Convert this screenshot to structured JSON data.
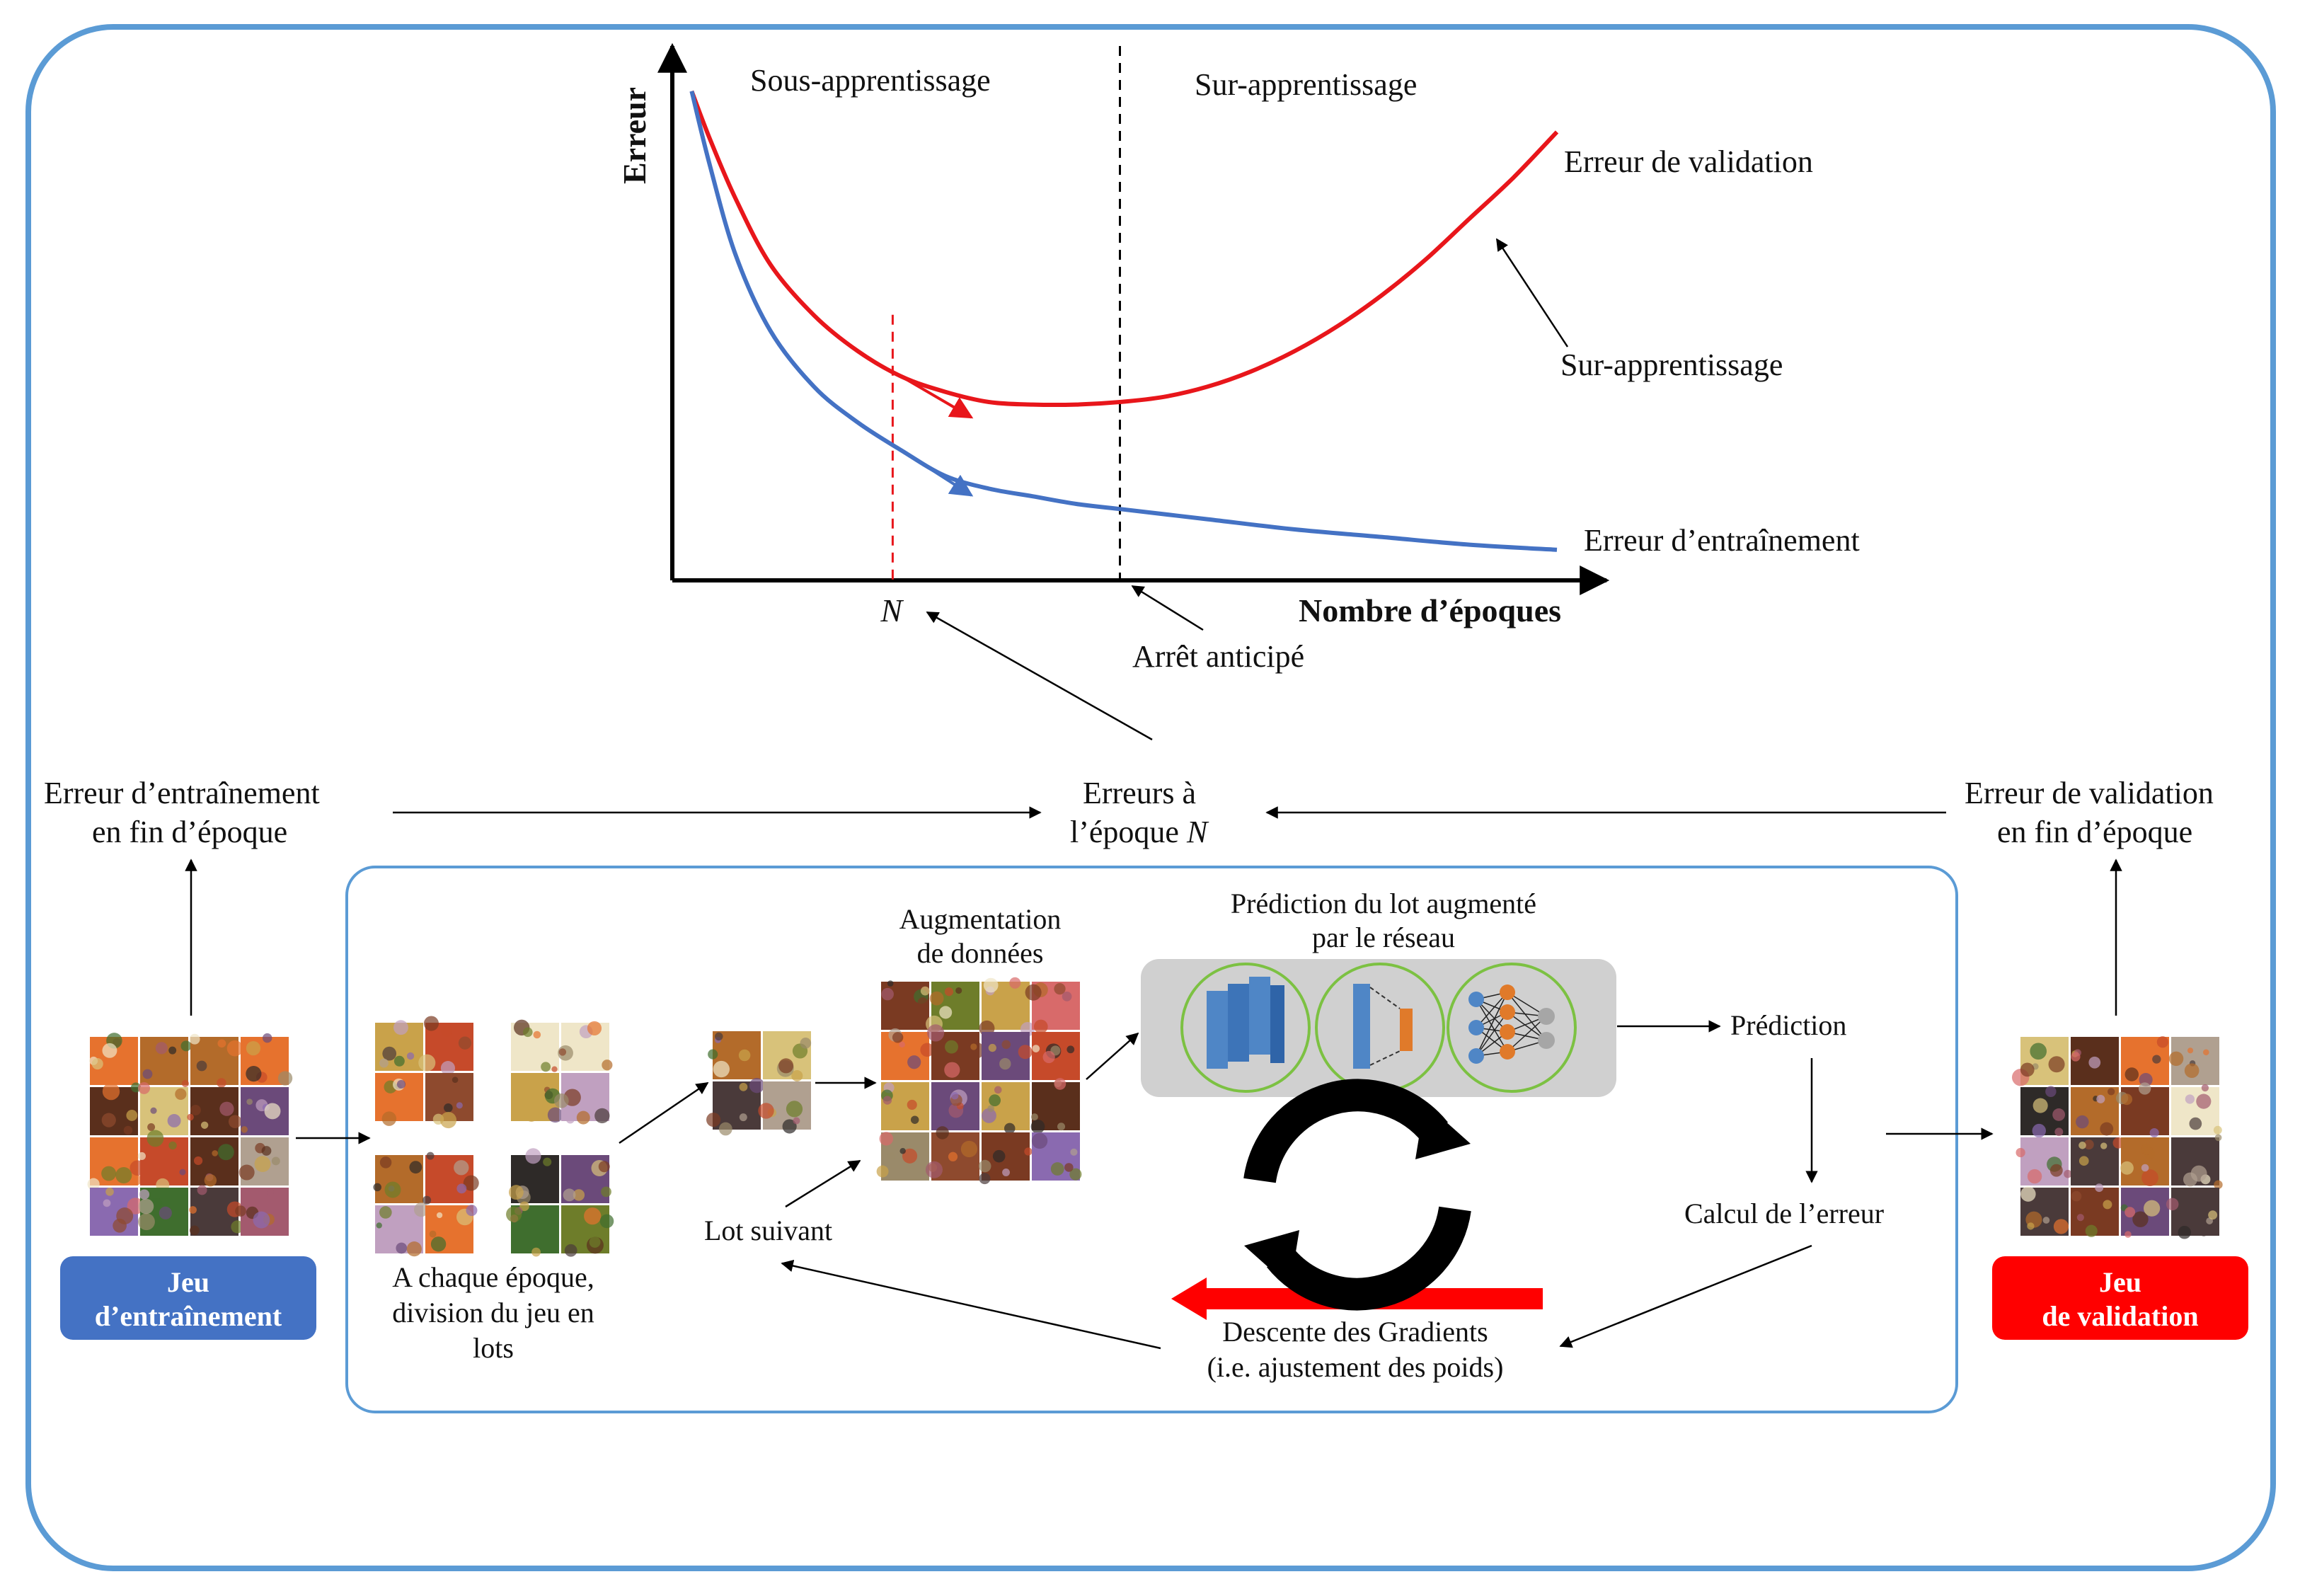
{
  "chart_data": {
    "type": "line",
    "title": "",
    "xlabel": "Nombre d’époques",
    "ylabel": "Erreur",
    "xlim": [
      0,
      100
    ],
    "ylim": [
      0,
      100
    ],
    "grid": false,
    "regions": {
      "left": "Sous-apprentissage",
      "right": "Sur-apprentissage"
    },
    "epoch_marker": "N",
    "epoch_marker_x": 24,
    "early_stop_x": 50,
    "series": [
      {
        "name": "Erreur de validation",
        "color": "#e8161b",
        "x": [
          1,
          3,
          6,
          10,
          15,
          20,
          25,
          30,
          35,
          40,
          45,
          50,
          55,
          60,
          65,
          70,
          75,
          80,
          85,
          90,
          95,
          100
        ],
        "y": [
          96,
          87,
          75,
          62,
          52,
          45,
          40,
          37,
          35,
          34.5,
          34.5,
          35,
          36,
          38,
          41,
          45,
          50,
          56,
          63,
          71,
          79,
          88
        ]
      },
      {
        "name": "Erreur d’entraînement",
        "color": "#4472c4",
        "x": [
          1,
          3,
          6,
          10,
          15,
          20,
          25,
          30,
          35,
          40,
          45,
          50,
          60,
          70,
          80,
          90,
          100
        ],
        "y": [
          96,
          82,
          64,
          49,
          38,
          31,
          25.5,
          20.5,
          18,
          16.5,
          15,
          14,
          12,
          10,
          8.5,
          7,
          6
        ]
      }
    ],
    "annotations": [
      "Sur-apprentissage",
      "Arrêt anticipé",
      "Erreur de validation",
      "Erreur d’entraînement"
    ]
  },
  "top": {
    "erreurs_n_line1": "Erreurs à",
    "erreurs_n_line2": "l’époque",
    "erreurs_n_var": "N",
    "train_end_line1": "Erreur d’entraînement",
    "train_end_line2": "en fin d’époque",
    "val_end_line1": "Erreur de validation",
    "val_end_line2": "en fin d’époque"
  },
  "pipeline": {
    "train_set_line1": "Jeu",
    "train_set_line2": "d’entraînement",
    "val_set_line1": "Jeu",
    "val_set_line2": "de validation",
    "batch_div_line1": "A chaque époque,",
    "batch_div_line2": "division du jeu en",
    "batch_div_line3": "lots",
    "next_batch": "Lot suivant",
    "augment_line1": "Augmentation",
    "augment_line2": "de données",
    "network_line1": "Prédiction du lot augmenté",
    "network_line2": "par le réseau",
    "prediction": "Prédiction",
    "error_calc": "Calcul de l’erreur",
    "gradient_line1": "Descente des Gradients",
    "gradient_line2": "(i.e. ajustement des poids)"
  },
  "colors": {
    "frame": "#5b9bd5",
    "train_box": "#4472c4",
    "val_box": "#ff0000",
    "val_curve": "#e8161b",
    "train_curve": "#4472c4",
    "net_panel": "#d0d0d0",
    "net_ring": "#7cc142"
  }
}
